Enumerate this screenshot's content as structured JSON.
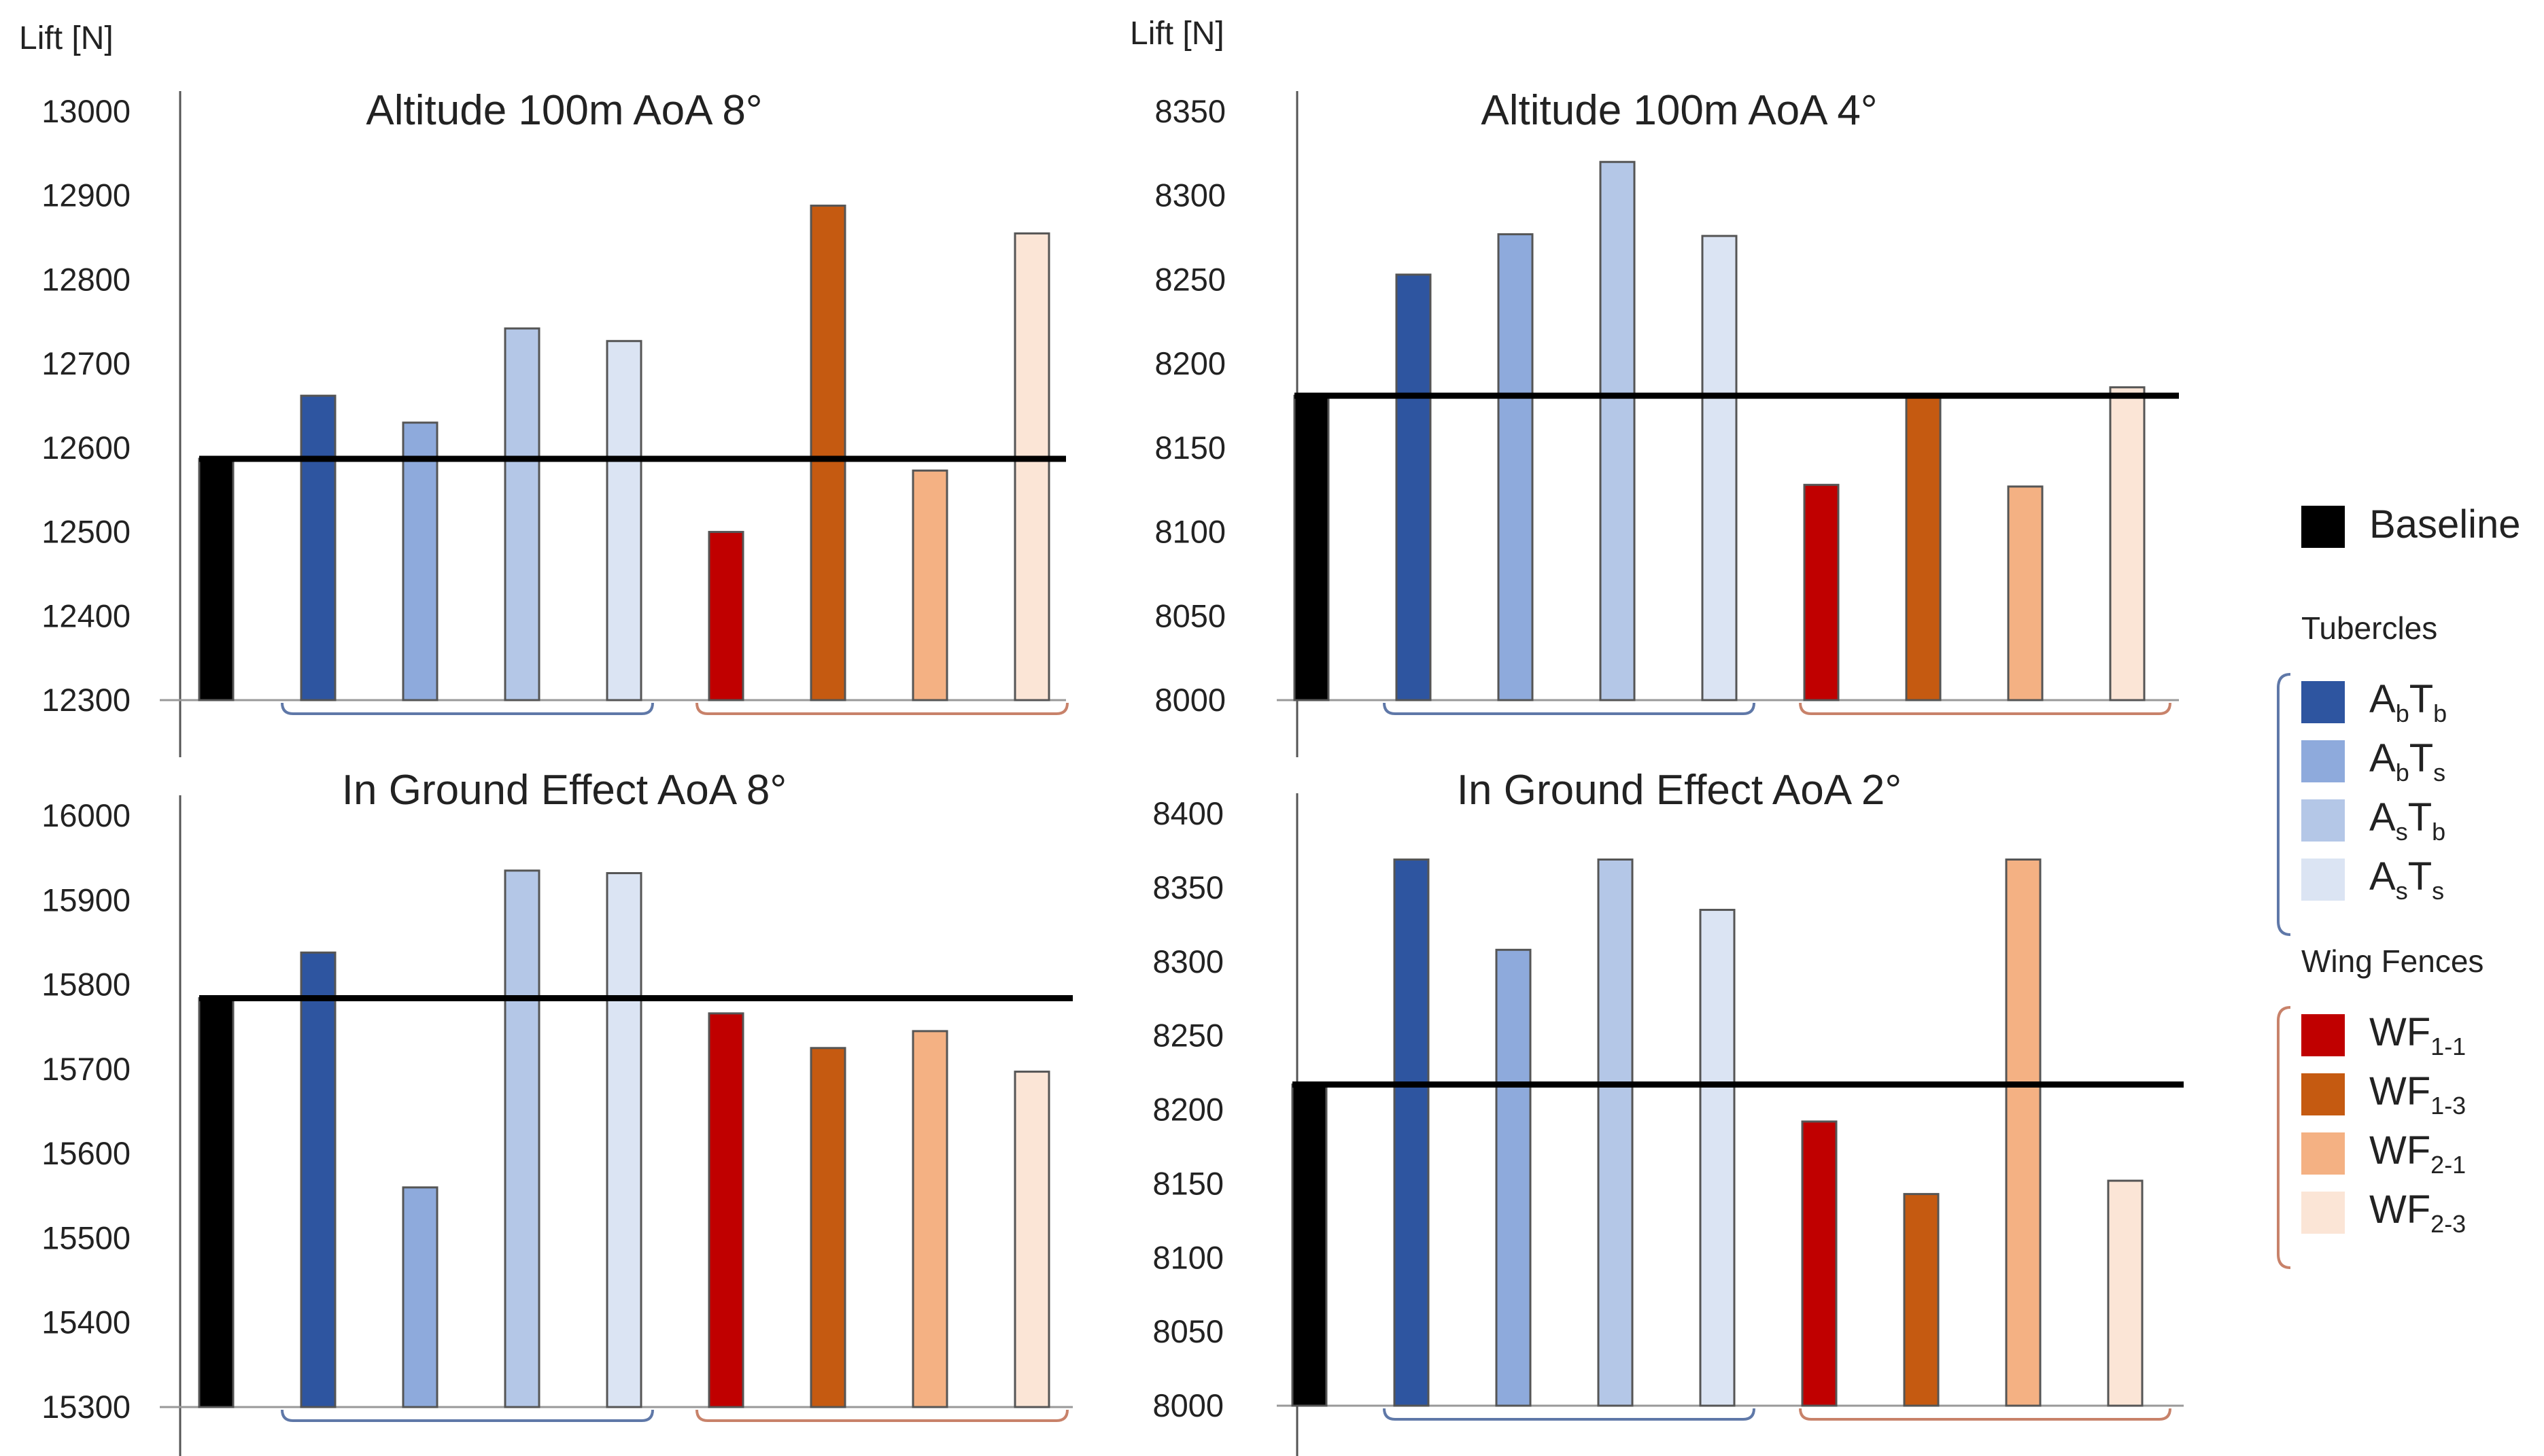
{
  "chart_data": [
    {
      "type": "bar",
      "title": "Altitude 100m AoA 8°",
      "ylabel": "Lift [N]",
      "ylim": [
        12300,
        13000
      ],
      "yticks": [
        12300,
        12400,
        12500,
        12600,
        12700,
        12800,
        12900,
        13000
      ],
      "baseline": 12587,
      "series": [
        {
          "name": "Baseline",
          "value": 12587
        },
        {
          "name": "AbTb",
          "value": 12662
        },
        {
          "name": "AbTs",
          "value": 12630
        },
        {
          "name": "AsTb",
          "value": 12742
        },
        {
          "name": "AsTs",
          "value": 12727
        },
        {
          "name": "WF1-1",
          "value": 12500
        },
        {
          "name": "WF1-3",
          "value": 12888
        },
        {
          "name": "WF2-1",
          "value": 12573
        },
        {
          "name": "WF2-3",
          "value": 12855
        }
      ]
    },
    {
      "type": "bar",
      "title": "Altitude 100m AoA 4°",
      "ylabel": "Lift [N]",
      "ylim": [
        8000,
        8350
      ],
      "yticks": [
        8000,
        8050,
        8100,
        8150,
        8200,
        8250,
        8300,
        8350
      ],
      "baseline": 8181,
      "series": [
        {
          "name": "Baseline",
          "value": 8181
        },
        {
          "name": "AbTb",
          "value": 8253
        },
        {
          "name": "AbTs",
          "value": 8277
        },
        {
          "name": "AsTb",
          "value": 8320
        },
        {
          "name": "AsTs",
          "value": 8276
        },
        {
          "name": "WF1-1",
          "value": 8128
        },
        {
          "name": "WF1-3",
          "value": 8181
        },
        {
          "name": "WF2-1",
          "value": 8127
        },
        {
          "name": "WF2-3",
          "value": 8186
        }
      ]
    },
    {
      "type": "bar",
      "title": "In Ground Effect AoA 8°",
      "ylabel": "",
      "ylim": [
        15300,
        16000
      ],
      "yticks": [
        15300,
        15400,
        15500,
        15600,
        15700,
        15800,
        15900,
        16000
      ],
      "baseline": 15784,
      "series": [
        {
          "name": "Baseline",
          "value": 15784
        },
        {
          "name": "AbTb",
          "value": 15838
        },
        {
          "name": "AbTs",
          "value": 15560
        },
        {
          "name": "AsTb",
          "value": 15935
        },
        {
          "name": "AsTs",
          "value": 15932
        },
        {
          "name": "WF1-1",
          "value": 15766
        },
        {
          "name": "WF1-3",
          "value": 15725
        },
        {
          "name": "WF2-1",
          "value": 15745
        },
        {
          "name": "WF2-3",
          "value": 15697
        }
      ]
    },
    {
      "type": "bar",
      "title": "In Ground Effect AoA 2°",
      "ylabel": "",
      "ylim": [
        8000,
        8400
      ],
      "yticks": [
        8000,
        8050,
        8100,
        8150,
        8200,
        8250,
        8300,
        8350,
        8400
      ],
      "baseline": 8217,
      "series": [
        {
          "name": "Baseline",
          "value": 8217
        },
        {
          "name": "AbTb",
          "value": 8369
        },
        {
          "name": "AbTs",
          "value": 8308
        },
        {
          "name": "AsTb",
          "value": 8369
        },
        {
          "name": "AsTs",
          "value": 8335
        },
        {
          "name": "WF1-1",
          "value": 8192
        },
        {
          "name": "WF1-3",
          "value": 8143
        },
        {
          "name": "WF2-1",
          "value": 8369
        },
        {
          "name": "WF2-3",
          "value": 8152
        }
      ]
    }
  ],
  "legend": {
    "baseline": {
      "label": "Baseline",
      "color": "#000000"
    },
    "groups": [
      {
        "title": "Tubercles",
        "bracket_color": "#5f78a8",
        "items": [
          {
            "id": "AbTb",
            "main1": "A",
            "sub1": "b",
            "main2": "T",
            "sub2": "b",
            "color": "#2e55a0"
          },
          {
            "id": "AbTs",
            "main1": "A",
            "sub1": "b",
            "main2": "T",
            "sub2": "s",
            "color": "#8eaadc"
          },
          {
            "id": "AsTb",
            "main1": "A",
            "sub1": "s",
            "main2": "T",
            "sub2": "b",
            "color": "#b4c7e7"
          },
          {
            "id": "AsTs",
            "main1": "A",
            "sub1": "s",
            "main2": "T",
            "sub2": "s",
            "color": "#dbe4f3"
          }
        ]
      },
      {
        "title": "Wing Fences",
        "bracket_color": "#c8826a",
        "items": [
          {
            "id": "WF1-1",
            "main1": "WF",
            "sub1": "1-1",
            "main2": "",
            "sub2": "",
            "color": "#c00000"
          },
          {
            "id": "WF1-3",
            "main1": "WF",
            "sub1": "1-3",
            "main2": "",
            "sub2": "",
            "color": "#c55a11"
          },
          {
            "id": "WF2-1",
            "main1": "WF",
            "sub1": "2-1",
            "main2": "",
            "sub2": "",
            "color": "#f4b183"
          },
          {
            "id": "WF2-3",
            "main1": "WF",
            "sub1": "2-3",
            "main2": "",
            "sub2": "",
            "color": "#fbe5d6"
          }
        ]
      }
    ]
  }
}
